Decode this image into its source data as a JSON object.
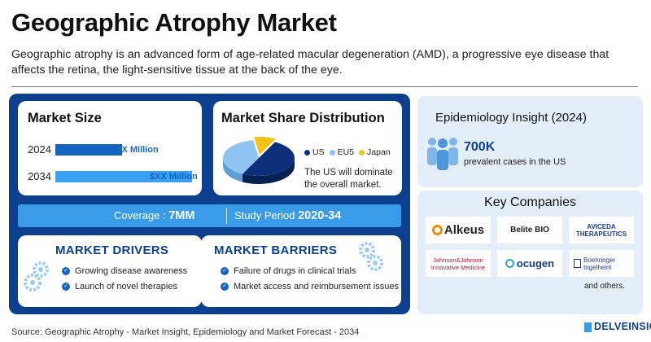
{
  "header": {
    "title": "Geographic Atrophy Market",
    "subtitle": "Geographic atrophy is an advanced form of age-related macular degeneration (AMD), a progressive eye disease that affects the retina, the light-sensitive tissue at the back of the eye."
  },
  "market_size": {
    "title": "Market Size",
    "rows": [
      {
        "year": "2024",
        "value": "$XX Million"
      },
      {
        "year": "2034",
        "value": "$XX Million"
      }
    ]
  },
  "market_share": {
    "title": "Market Share Distribution",
    "legend": [
      {
        "label": "US",
        "color": "#0d2f7a"
      },
      {
        "label": "EU5",
        "color": "#8fc3f2"
      },
      {
        "label": "Japan",
        "color": "#f2c21b"
      }
    ],
    "note": "The US will dominate the overall market."
  },
  "chart_data": {
    "type": "pie",
    "categories": [
      "US",
      "EU5",
      "Japan"
    ],
    "values": [
      50,
      40,
      10
    ],
    "title": "Market Share Distribution",
    "legend_placement": "right"
  },
  "coverage": {
    "label": "Coverage :",
    "value": "7MM",
    "study_label": "Study Period",
    "study_value": "2020-34"
  },
  "drivers": {
    "title": "MARKET DRIVERS",
    "items": [
      "Growing disease awareness",
      "Launch of novel therapies"
    ]
  },
  "barriers": {
    "title": "MARKET BARRIERS",
    "items": [
      "Failure of drugs in clinical trials",
      "Market access and reimbursement issues"
    ]
  },
  "epidemiology": {
    "title": "Epidemiology Insight (2024)",
    "value": "700K",
    "description": "prevalent cases in the US"
  },
  "key_companies": {
    "title": "Key Companies",
    "companies": [
      "Alkeus",
      "Belite BIO",
      "AVICEDA THERAPEUTICS",
      "Johnson&Johnson Innovative Medicine",
      "ocugen",
      "Boehringer Ingelheim"
    ],
    "others": "and others."
  },
  "footer": {
    "source": "Source: Geographic Atrophy - Market Insight, Epidemiology and Market Forecast - 2034",
    "brand": "DELVEINSIGHT"
  }
}
